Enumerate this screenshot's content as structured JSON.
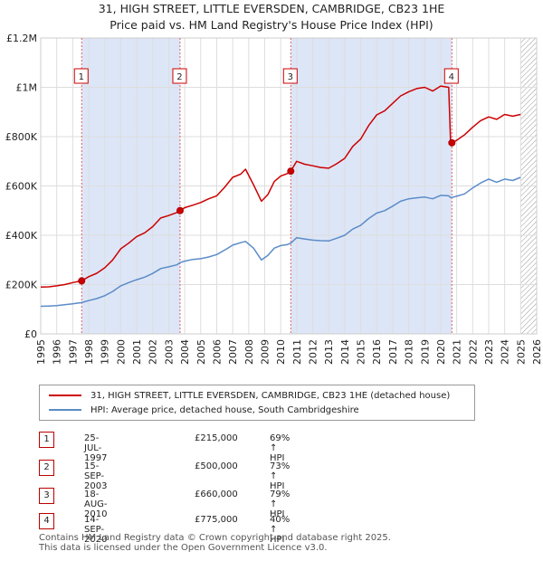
{
  "header": {
    "title": "31, HIGH STREET, LITTLE EVERSDEN, CAMBRIDGE, CB23 1HE",
    "subtitle": "Price paid vs. HM Land Registry's House Price Index (HPI)"
  },
  "chart_data": {
    "type": "line",
    "title": "31, HIGH STREET, LITTLE EVERSDEN, CAMBRIDGE, CB23 1HE",
    "subtitle": "Price paid vs. HM Land Registry's House Price Index (HPI)",
    "xlabel": "",
    "ylabel": "",
    "xlim": [
      1995,
      2026
    ],
    "ylim": [
      0,
      1200000
    ],
    "x_ticks": [
      "1995",
      "1996",
      "1997",
      "1998",
      "1999",
      "2000",
      "2001",
      "2002",
      "2003",
      "2004",
      "2005",
      "2006",
      "2007",
      "2008",
      "2009",
      "2010",
      "2011",
      "2012",
      "2013",
      "2014",
      "2015",
      "2016",
      "2017",
      "2018",
      "2019",
      "2020",
      "2021",
      "2022",
      "2023",
      "2024",
      "2025",
      "2026"
    ],
    "y_ticks": [
      {
        "value": 0,
        "label": "£0"
      },
      {
        "value": 200000,
        "label": "£200K"
      },
      {
        "value": 400000,
        "label": "£400K"
      },
      {
        "value": 600000,
        "label": "£600K"
      },
      {
        "value": 800000,
        "label": "£800K"
      },
      {
        "value": 1000000,
        "label": "£1M"
      },
      {
        "value": 1200000,
        "label": "£1.2M"
      }
    ],
    "grid": true,
    "colors": {
      "property": "#cc0000",
      "hpi": "#5b8cc8",
      "band": "#dde6f7",
      "vline": "#e06060",
      "hatch": "#999999"
    },
    "series": [
      {
        "name": "31, HIGH STREET, LITTLE EVERSDEN, CAMBRIDGE, CB23 1HE (detached house)",
        "color": "#cc0000",
        "x": [
          1995.0,
          1995.5,
          1996.0,
          1996.5,
          1997.0,
          1997.56,
          1998.0,
          1998.5,
          1999.0,
          1999.5,
          2000.0,
          2000.5,
          2001.0,
          2001.5,
          2002.0,
          2002.5,
          2003.0,
          2003.5,
          2003.71,
          2004.0,
          2004.5,
          2005.0,
          2005.5,
          2006.0,
          2006.5,
          2007.0,
          2007.5,
          2007.8,
          2008.3,
          2008.8,
          2009.2,
          2009.6,
          2010.0,
          2010.4,
          2010.63,
          2011.0,
          2011.5,
          2012.0,
          2012.5,
          2013.0,
          2013.5,
          2014.0,
          2014.5,
          2015.0,
          2015.5,
          2016.0,
          2016.5,
          2017.0,
          2017.5,
          2018.0,
          2018.5,
          2019.0,
          2019.5,
          2020.0,
          2020.5,
          2020.62,
          2020.7,
          2021.0,
          2021.5,
          2022.0,
          2022.5,
          2023.0,
          2023.5,
          2024.0,
          2024.5,
          2025.0
        ],
        "values": [
          190000,
          191000,
          195000,
          200000,
          208000,
          215000,
          232000,
          246000,
          268000,
          300000,
          345000,
          368000,
          395000,
          410000,
          435000,
          470000,
          480000,
          492000,
          500000,
          512000,
          522000,
          533000,
          548000,
          560000,
          595000,
          635000,
          648000,
          668000,
          605000,
          538000,
          565000,
          618000,
          640000,
          650000,
          660000,
          700000,
          688000,
          682000,
          675000,
          672000,
          690000,
          712000,
          760000,
          790000,
          845000,
          888000,
          905000,
          935000,
          965000,
          982000,
          995000,
          1000000,
          985000,
          1005000,
          1000000,
          775000,
          775000,
          785000,
          808000,
          838000,
          865000,
          880000,
          870000,
          890000,
          883000,
          890000
        ]
      },
      {
        "name": "HPI: Average price, detached house, South Cambridgeshire",
        "color": "#5b8cc8",
        "x": [
          1995.0,
          1995.5,
          1996.0,
          1996.5,
          1997.0,
          1997.56,
          1998.0,
          1998.5,
          1999.0,
          1999.5,
          2000.0,
          2000.5,
          2001.0,
          2001.5,
          2002.0,
          2002.5,
          2003.0,
          2003.5,
          2003.71,
          2004.0,
          2004.5,
          2005.0,
          2005.5,
          2006.0,
          2006.5,
          2007.0,
          2007.5,
          2007.8,
          2008.3,
          2008.8,
          2009.2,
          2009.6,
          2010.0,
          2010.4,
          2010.63,
          2011.0,
          2011.5,
          2012.0,
          2012.5,
          2013.0,
          2013.5,
          2014.0,
          2014.5,
          2015.0,
          2015.5,
          2016.0,
          2016.5,
          2017.0,
          2017.5,
          2018.0,
          2018.5,
          2019.0,
          2019.5,
          2020.0,
          2020.5,
          2020.62,
          2020.7,
          2021.0,
          2021.5,
          2022.0,
          2022.5,
          2023.0,
          2023.5,
          2024.0,
          2024.5,
          2025.0
        ],
        "values": [
          112000,
          113000,
          115000,
          118000,
          122000,
          127000,
          135000,
          143000,
          155000,
          172000,
          195000,
          208000,
          220000,
          230000,
          245000,
          265000,
          272000,
          280000,
          289000,
          295000,
          302000,
          305000,
          312000,
          322000,
          340000,
          360000,
          370000,
          375000,
          348000,
          300000,
          318000,
          348000,
          358000,
          362000,
          368000,
          390000,
          385000,
          380000,
          378000,
          377000,
          388000,
          400000,
          425000,
          440000,
          468000,
          490000,
          500000,
          518000,
          538000,
          548000,
          552000,
          555000,
          548000,
          562000,
          560000,
          553000,
          553000,
          558000,
          568000,
          592000,
          612000,
          628000,
          615000,
          628000,
          622000,
          635000
        ]
      }
    ],
    "sales": [
      {
        "n": "1",
        "x": 1997.56,
        "price": 215000
      },
      {
        "n": "2",
        "x": 2003.71,
        "price": 500000
      },
      {
        "n": "3",
        "x": 2010.63,
        "price": 660000
      },
      {
        "n": "4",
        "x": 2020.7,
        "price": 775000
      }
    ]
  },
  "legend": {
    "property_label": "31, HIGH STREET, LITTLE EVERSDEN, CAMBRIDGE, CB23 1HE (detached house)",
    "hpi_label": "HPI: Average price, detached house, South Cambridgeshire"
  },
  "sales_table": [
    {
      "n": "1",
      "date": "25-JUL-1997",
      "price": "£215,000",
      "hpi": "69% ↑ HPI"
    },
    {
      "n": "2",
      "date": "15-SEP-2003",
      "price": "£500,000",
      "hpi": "73% ↑ HPI"
    },
    {
      "n": "3",
      "date": "18-AUG-2010",
      "price": "£660,000",
      "hpi": "79% ↑ HPI"
    },
    {
      "n": "4",
      "date": "14-SEP-2020",
      "price": "£775,000",
      "hpi": "40% ↑ HPI"
    }
  ],
  "footer": {
    "line1": "Contains HM Land Registry data © Crown copyright and database right 2025.",
    "line2": "This data is licensed under the Open Government Licence v3.0."
  }
}
